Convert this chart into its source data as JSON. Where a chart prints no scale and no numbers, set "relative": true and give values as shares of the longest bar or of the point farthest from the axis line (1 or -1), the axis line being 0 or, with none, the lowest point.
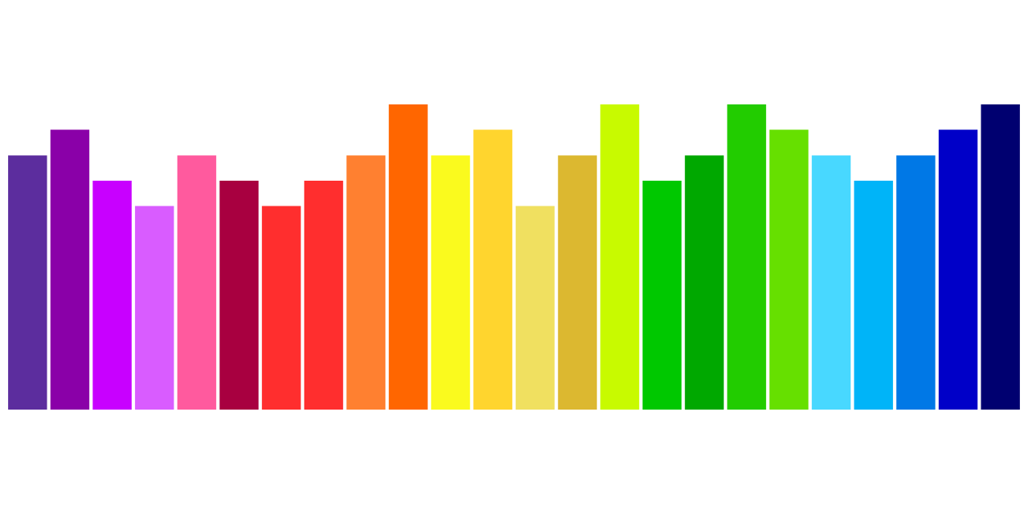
{
  "chart_data": {
    "type": "bar",
    "relative": true,
    "categories": [
      null,
      null,
      null,
      null,
      null,
      null,
      null,
      null,
      null,
      null,
      null,
      null,
      null,
      null,
      null,
      null,
      null,
      null,
      null,
      null,
      null,
      null,
      null,
      null
    ],
    "values": [
      0.833,
      0.917,
      0.75,
      0.667,
      0.833,
      0.75,
      0.667,
      0.75,
      0.833,
      1,
      0.833,
      0.917,
      0.667,
      0.833,
      1,
      0.75,
      0.833,
      1,
      0.917,
      0.833,
      0.75,
      0.833,
      0.917,
      1
    ],
    "colors": [
      "#5c2d9e",
      "#8a00a8",
      "#c800ff",
      "#d95cff",
      "#ff5a9e",
      "#a80040",
      "#ff2e2e",
      "#ff2e2e",
      "#ff8030",
      "#ff6600",
      "#fafa1e",
      "#ffd52e",
      "#f0e060",
      "#dcb830",
      "#c8fa00",
      "#00c800",
      "#00a800",
      "#22cc00",
      "#66e000",
      "#48d8ff",
      "#00b4f8",
      "#0078e6",
      "#0000c8",
      "#000070"
    ],
    "legend": false
  }
}
